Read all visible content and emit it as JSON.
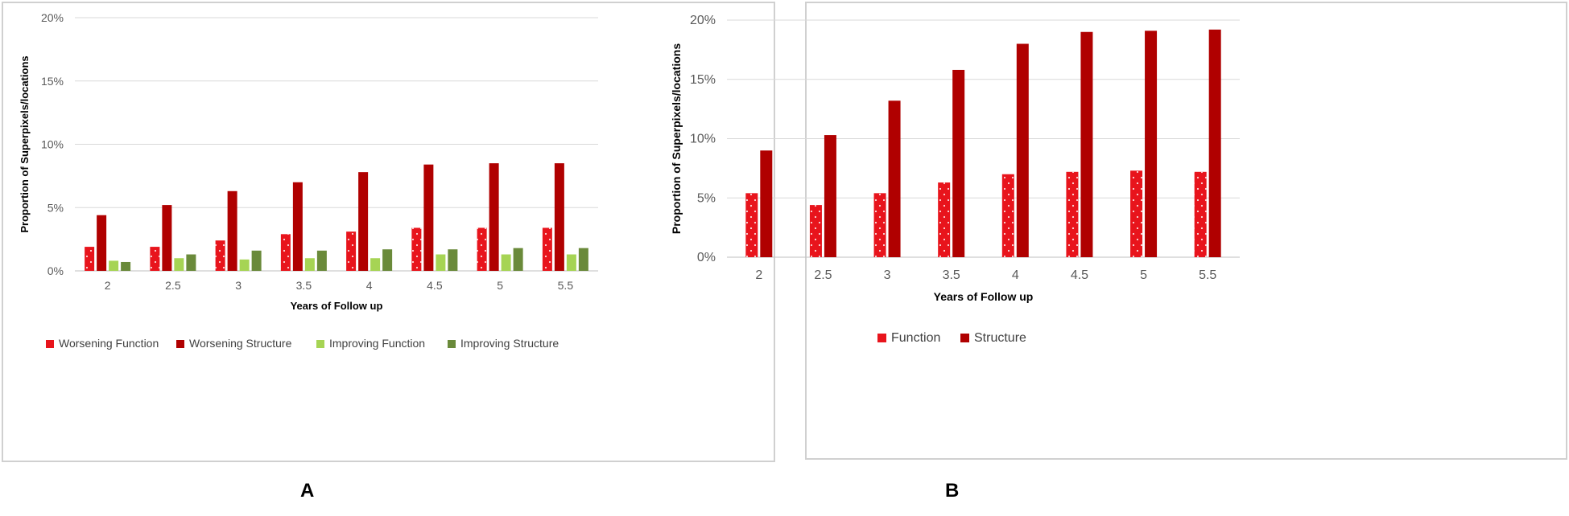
{
  "colors": {
    "worsening_function": "#e8141c",
    "worsening_structure": "#b00000",
    "improving_function": "#a6d454",
    "improving_structure": "#6a8a3a",
    "function": "#e8141c",
    "structure": "#b00000",
    "grid": "#d9d9d9"
  },
  "panel_labels": {
    "a": "A",
    "b": "B"
  },
  "chart_data": [
    {
      "id": "A",
      "type": "bar",
      "title": "",
      "xlabel": "Years of Follow up",
      "ylabel": "Proportion of Superpixels/locations",
      "ylim": [
        0,
        0.2
      ],
      "yticks": [
        "0%",
        "5%",
        "10%",
        "15%",
        "20%"
      ],
      "grid": true,
      "legend_position": "bottom",
      "categories": [
        "2",
        "2.5",
        "3",
        "3.5",
        "4",
        "4.5",
        "5",
        "5.5"
      ],
      "series": [
        {
          "name": "Worsening Function",
          "values": [
            0.019,
            0.019,
            0.024,
            0.029,
            0.031,
            0.034,
            0.034,
            0.034
          ]
        },
        {
          "name": "Worsening Structure",
          "values": [
            0.044,
            0.052,
            0.063,
            0.07,
            0.078,
            0.084,
            0.085,
            0.085
          ]
        },
        {
          "name": "Improving Function",
          "values": [
            0.008,
            0.01,
            0.009,
            0.01,
            0.01,
            0.013,
            0.013,
            0.013
          ]
        },
        {
          "name": "Improving Structure",
          "values": [
            0.007,
            0.013,
            0.016,
            0.016,
            0.017,
            0.017,
            0.018,
            0.018
          ]
        }
      ]
    },
    {
      "id": "B",
      "type": "bar",
      "title": "",
      "xlabel": "Years of Follow up",
      "ylabel": "Proportion of Superpixels/locations",
      "ylim": [
        0,
        0.2
      ],
      "yticks": [
        "0%",
        "5%",
        "10%",
        "15%",
        "20%"
      ],
      "grid": true,
      "legend_position": "bottom",
      "categories": [
        "2",
        "2.5",
        "3",
        "3.5",
        "4",
        "4.5",
        "5",
        "5.5"
      ],
      "series": [
        {
          "name": "Function",
          "values": [
            0.054,
            0.044,
            0.054,
            0.063,
            0.07,
            0.072,
            0.073,
            0.072
          ]
        },
        {
          "name": "Structure",
          "values": [
            0.09,
            0.103,
            0.132,
            0.158,
            0.18,
            0.19,
            0.191,
            0.192
          ]
        }
      ]
    }
  ]
}
